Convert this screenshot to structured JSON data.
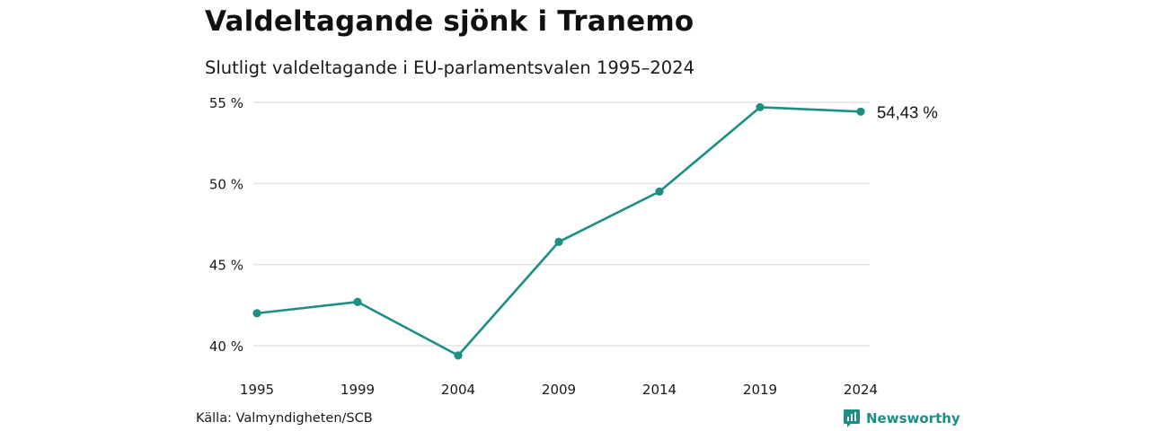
{
  "header": {
    "title": "Valdeltagande sjönk i Tranemo",
    "subtitle": "Slutligt valdeltagande i EU-parlamentsvalen 1995–2024"
  },
  "footer": {
    "source": "Källa: Valmyndigheten/SCB",
    "brand": "Newsworthy",
    "brand_icon": "newsworthy-logo-icon"
  },
  "colors": {
    "line": "#1b8f84",
    "grid": "#dddddd",
    "text": "#1a1a1a"
  },
  "chart_data": {
    "type": "line",
    "title": "Valdeltagande sjönk i Tranemo",
    "subtitle": "Slutligt valdeltagande i EU-parlamentsvalen 1995–2024",
    "xlabel": "",
    "ylabel": "",
    "x": [
      "1995",
      "1999",
      "2004",
      "2009",
      "2014",
      "2019",
      "2024"
    ],
    "series": [
      {
        "values": [
          42.0,
          42.7,
          39.4,
          46.4,
          49.5,
          54.7,
          54.43
        ]
      }
    ],
    "yticks": [
      40,
      45,
      50,
      55
    ],
    "ytick_labels": [
      "40 %",
      "45 %",
      "50 %",
      "55 %"
    ],
    "ylim": [
      40,
      55
    ],
    "grid": true,
    "end_label": "54,43 %"
  }
}
